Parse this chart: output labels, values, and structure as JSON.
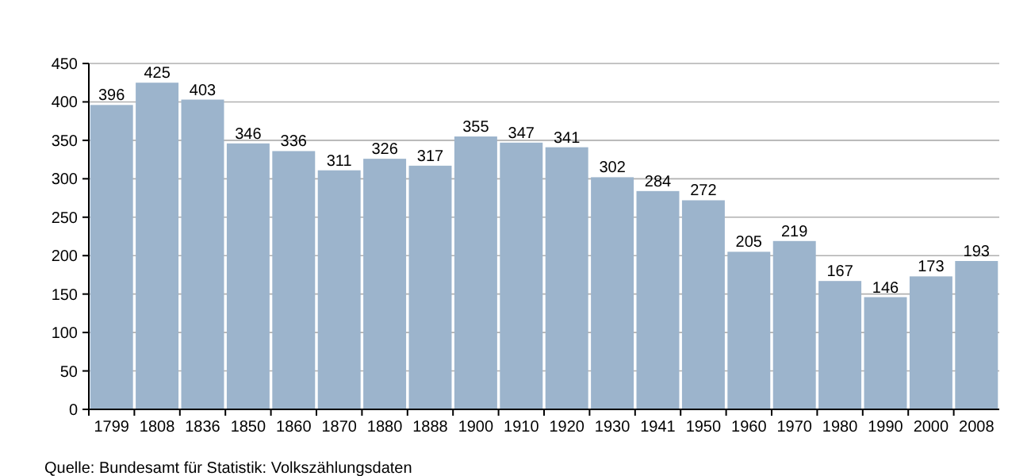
{
  "chart_data": {
    "type": "bar",
    "categories": [
      "1799",
      "1808",
      "1836",
      "1850",
      "1860",
      "1870",
      "1880",
      "1888",
      "1900",
      "1910",
      "1920",
      "1930",
      "1941",
      "1950",
      "1960",
      "1970",
      "1980",
      "1990",
      "2000",
      "2008"
    ],
    "values": [
      396,
      425,
      403,
      346,
      336,
      311,
      326,
      317,
      355,
      347,
      341,
      302,
      284,
      272,
      205,
      219,
      167,
      146,
      173,
      193
    ],
    "color": "#9cb4cc",
    "ylim": [
      0,
      450
    ],
    "yticks": [
      0,
      50,
      100,
      150,
      200,
      250,
      300,
      350,
      400,
      450
    ],
    "grid": "y",
    "data_labels": true,
    "annotations": [
      "Quelle: Bundesamt für Statistik: Volkszählungsdaten"
    ]
  }
}
